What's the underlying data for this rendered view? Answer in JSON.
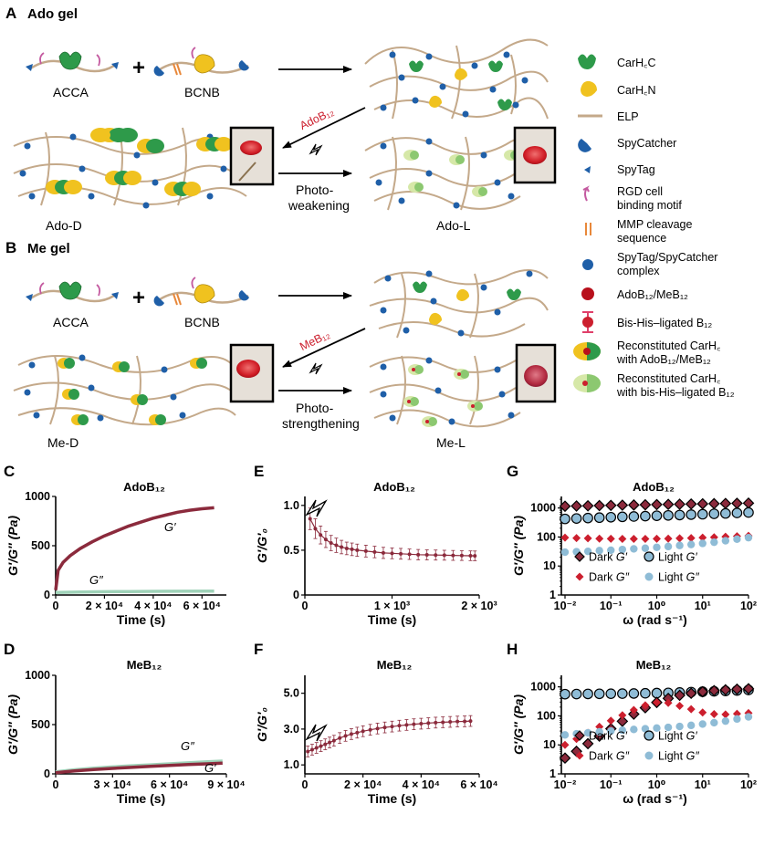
{
  "panel_labels": {
    "A": "A",
    "B": "B",
    "C": "C",
    "D": "D",
    "E": "E",
    "F": "F",
    "G": "G",
    "H": "H"
  },
  "schematic": {
    "a_title": "Ado gel",
    "b_title": "Me gel",
    "acca": "ACCA",
    "bcnb": "BCNB",
    "plus": "+",
    "ado_reagent": "AdoB₁₂",
    "me_reagent": "MeB₁₂",
    "photo_weakening": [
      "Photo-",
      "weakening"
    ],
    "photo_strengthening": [
      "Photo-",
      "strengthening"
    ],
    "ado_d": "Ado-D",
    "ado_l": "Ado-L",
    "me_d": "Me-D",
    "me_l": "Me-L"
  },
  "legend": {
    "carhcc": "CarH꜀C",
    "carhcn": "CarH꜀N",
    "elp": "ELP",
    "spycatcher": "SpyCatcher",
    "spytag": "SpyTag",
    "rgd": [
      "RGD cell",
      "binding motif"
    ],
    "mmp": [
      "MMP cleavage",
      "sequence"
    ],
    "complex": [
      "SpyTag/SpyCatcher",
      "complex"
    ],
    "adob12": "AdoB₁₂/MeB₁₂",
    "bishis": "Bis-His–ligated B₁₂",
    "recon_ado": [
      "Reconstituted CarH꜀",
      "with AdoB₁₂/MeB₁₂"
    ],
    "recon_bis": [
      "Reconstituted CarH꜀",
      "with bis-His–ligated B₁₂"
    ]
  },
  "colors": {
    "dark": "#8b2a3c",
    "light_green": "#9fd2b8",
    "red": "#cc1f2e",
    "light_blue": "#8fbcd6",
    "elp": "#c4a98a",
    "green": "#2e9a4a",
    "yellow": "#f0c21f",
    "blue": "#1f5fa8",
    "pink": "#c45aa0",
    "orange": "#e8883a"
  },
  "chart_data": [
    {
      "panel": "C",
      "type": "line",
      "title": "AdoB₁₂",
      "xlabel": "Time (s)",
      "ylabel": "G′/G″ (Pa)",
      "xlim": [
        0,
        70000
      ],
      "ylim": [
        0,
        1000
      ],
      "xticks": [
        "0",
        "2 × 10⁴",
        "4 × 10⁴",
        "6 × 10⁴"
      ],
      "yticks": [
        "0",
        "500",
        "1000"
      ],
      "series": [
        {
          "name": "G′",
          "x": [
            0,
            1000,
            3000,
            6000,
            10000,
            15000,
            20000,
            25000,
            30000,
            35000,
            40000,
            45000,
            50000,
            55000,
            60000,
            65000
          ],
          "values": [
            50,
            250,
            330,
            400,
            470,
            540,
            600,
            650,
            700,
            740,
            780,
            810,
            840,
            860,
            875,
            885
          ]
        },
        {
          "name": "G″",
          "x": [
            0,
            10000,
            20000,
            30000,
            40000,
            50000,
            65000
          ],
          "values": [
            25,
            30,
            33,
            35,
            37,
            38,
            40
          ]
        }
      ]
    },
    {
      "panel": "D",
      "type": "line",
      "title": "MeB₁₂",
      "xlabel": "Time (s)",
      "ylabel": "G′/G″ (Pa)",
      "xlim": [
        0,
        90000
      ],
      "ylim": [
        0,
        1000
      ],
      "xticks": [
        "0",
        "3 × 10⁴",
        "6 × 10⁴",
        "9 × 10⁴"
      ],
      "yticks": [
        "0",
        "500",
        "1000"
      ],
      "series": [
        {
          "name": "G″",
          "x": [
            0,
            10000,
            20000,
            30000,
            40000,
            50000,
            60000,
            70000,
            80000,
            88000
          ],
          "values": [
            20,
            42,
            58,
            70,
            82,
            92,
            102,
            112,
            122,
            130
          ]
        },
        {
          "name": "G′",
          "x": [
            0,
            10000,
            20000,
            30000,
            40000,
            50000,
            60000,
            70000,
            80000,
            88000
          ],
          "values": [
            12,
            30,
            44,
            56,
            66,
            76,
            86,
            94,
            102,
            108
          ]
        }
      ]
    },
    {
      "panel": "E",
      "type": "line",
      "title": "AdoB₁₂",
      "xlabel": "Time (s)",
      "ylabel": "G′/G′₀",
      "xlim": [
        0,
        2000
      ],
      "ylim": [
        0,
        1.1
      ],
      "xticks": [
        "0",
        "1 × 10³",
        "2 × 10³"
      ],
      "yticks": [
        "0",
        "0.5",
        "1.0"
      ],
      "series": [
        {
          "name": "G′/G′₀",
          "x": [
            60,
            120,
            180,
            240,
            300,
            360,
            420,
            480,
            540,
            600,
            700,
            800,
            900,
            1000,
            1100,
            1200,
            1300,
            1400,
            1500,
            1600,
            1700,
            1800,
            1900,
            1950
          ],
          "values": [
            0.85,
            0.74,
            0.67,
            0.62,
            0.58,
            0.555,
            0.535,
            0.52,
            0.51,
            0.5,
            0.49,
            0.48,
            0.47,
            0.465,
            0.46,
            0.455,
            0.45,
            0.448,
            0.446,
            0.444,
            0.442,
            0.44,
            0.438,
            0.437
          ],
          "err": [
            0.12,
            0.11,
            0.1,
            0.09,
            0.085,
            0.08,
            0.075,
            0.07,
            0.07,
            0.068,
            0.066,
            0.064,
            0.062,
            0.06,
            0.06,
            0.058,
            0.058,
            0.056,
            0.056,
            0.055,
            0.055,
            0.054,
            0.054,
            0.054
          ]
        }
      ]
    },
    {
      "panel": "F",
      "type": "line",
      "title": "MeB₁₂",
      "xlabel": "Time (s)",
      "ylabel": "G′/G′₀",
      "xlim": [
        0,
        60000
      ],
      "ylim": [
        0.5,
        6
      ],
      "xticks": [
        "0",
        "2 × 10⁴",
        "4 × 10⁴",
        "6 × 10⁴"
      ],
      "yticks": [
        "1.0",
        "3.0",
        "5.0"
      ],
      "series": [
        {
          "name": "G′/G′₀",
          "x": [
            1000,
            2500,
            4000,
            5500,
            7000,
            8500,
            10000,
            12000,
            14000,
            16000,
            18000,
            20000,
            22500,
            25000,
            27500,
            30000,
            32500,
            35000,
            37500,
            40000,
            42500,
            45000,
            47500,
            50000,
            52500,
            55000,
            57000
          ],
          "values": [
            1.75,
            1.85,
            1.95,
            2.05,
            2.15,
            2.25,
            2.35,
            2.5,
            2.62,
            2.72,
            2.8,
            2.88,
            2.96,
            3.03,
            3.09,
            3.14,
            3.19,
            3.23,
            3.27,
            3.3,
            3.33,
            3.36,
            3.38,
            3.4,
            3.42,
            3.43,
            3.45
          ],
          "err": [
            0.3,
            0.3,
            0.3,
            0.3,
            0.3,
            0.3,
            0.3,
            0.3,
            0.3,
            0.3,
            0.3,
            0.3,
            0.3,
            0.3,
            0.3,
            0.3,
            0.3,
            0.3,
            0.3,
            0.3,
            0.3,
            0.3,
            0.3,
            0.3,
            0.3,
            0.3,
            0.3
          ]
        }
      ]
    },
    {
      "panel": "G",
      "type": "scatter",
      "title": "AdoB₁₂",
      "xlabel": "ω (rad s⁻¹)",
      "ylabel": "G′/G″ (Pa)",
      "xscale": "log",
      "yscale": "log",
      "xlim": [
        0.01,
        100
      ],
      "ylim": [
        1,
        2500
      ],
      "xticks": [
        "10⁻²",
        "10⁻¹",
        "10⁰",
        "10¹",
        "10²"
      ],
      "yticks": [
        "1",
        "10",
        "100",
        "1000"
      ],
      "series": [
        {
          "name": "Dark G′",
          "marker": "diamond-outlined",
          "x": [
            0.01,
            0.0178,
            0.0316,
            0.0562,
            0.1,
            0.178,
            0.316,
            0.562,
            1,
            1.78,
            3.16,
            5.62,
            10,
            17.8,
            31.6,
            56.2,
            100
          ],
          "values": [
            1150,
            1170,
            1190,
            1210,
            1230,
            1250,
            1270,
            1290,
            1310,
            1330,
            1350,
            1370,
            1390,
            1410,
            1430,
            1450,
            1470
          ]
        },
        {
          "name": "Light G′",
          "marker": "circle-outlined",
          "x": [
            0.01,
            0.0178,
            0.0316,
            0.0562,
            0.1,
            0.178,
            0.316,
            0.562,
            1,
            1.78,
            3.16,
            5.62,
            10,
            17.8,
            31.6,
            56.2,
            100
          ],
          "values": [
            420,
            435,
            450,
            465,
            480,
            495,
            510,
            525,
            540,
            555,
            570,
            590,
            610,
            630,
            650,
            675,
            700
          ]
        },
        {
          "name": "Dark G″",
          "marker": "diamond",
          "x": [
            0.01,
            0.0178,
            0.0316,
            0.0562,
            0.1,
            0.178,
            0.316,
            0.562,
            1,
            1.78,
            3.16,
            5.62,
            10,
            17.8,
            31.6,
            56.2,
            100
          ],
          "values": [
            95,
            92,
            90,
            88,
            87,
            86,
            86,
            86,
            87,
            88,
            90,
            92,
            95,
            98,
            102,
            106,
            110
          ]
        },
        {
          "name": "Light G″",
          "marker": "circle",
          "x": [
            0.01,
            0.0178,
            0.0316,
            0.0562,
            0.1,
            0.178,
            0.316,
            0.562,
            1,
            1.78,
            3.16,
            5.62,
            10,
            17.8,
            31.6,
            56.2,
            100
          ],
          "values": [
            30,
            31,
            32,
            34,
            35,
            37,
            39,
            41,
            44,
            47,
            51,
            55,
            60,
            66,
            74,
            84,
            95
          ]
        }
      ],
      "legend_labels": [
        [
          "Dark",
          "G′"
        ],
        [
          "Light",
          "G′"
        ],
        [
          "Dark",
          "G″"
        ],
        [
          "Light",
          "G″"
        ]
      ]
    },
    {
      "panel": "H",
      "type": "scatter",
      "title": "MeB₁₂",
      "xlabel": "ω (rad s⁻¹)",
      "ylabel": "G′/G″ (Pa)",
      "xscale": "log",
      "yscale": "log",
      "xlim": [
        0.01,
        100
      ],
      "ylim": [
        1,
        2500
      ],
      "xticks": [
        "10⁻²",
        "10⁻¹",
        "10⁰",
        "10¹",
        "10²"
      ],
      "yticks": [
        "1",
        "10",
        "100",
        "1000"
      ],
      "series": [
        {
          "name": "Light G′",
          "marker": "circle-outlined",
          "x": [
            0.01,
            0.0178,
            0.0316,
            0.0562,
            0.1,
            0.178,
            0.316,
            0.562,
            1,
            1.78,
            3.16,
            5.62,
            10,
            17.8,
            31.6,
            56.2,
            100
          ],
          "values": [
            560,
            565,
            570,
            575,
            580,
            585,
            590,
            600,
            610,
            620,
            640,
            660,
            680,
            700,
            720,
            750,
            780
          ]
        },
        {
          "name": "Dark G′",
          "marker": "diamond-outlined",
          "x": [
            0.01,
            0.0178,
            0.0316,
            0.0562,
            0.1,
            0.178,
            0.316,
            0.562,
            1,
            1.78,
            3.16,
            5.62,
            10,
            17.8,
            31.6,
            56.2,
            100
          ],
          "values": [
            3.5,
            6,
            11,
            20,
            36,
            65,
            115,
            190,
            290,
            400,
            510,
            600,
            680,
            740,
            790,
            830,
            860
          ]
        },
        {
          "name": "Dark G″",
          "marker": "diamond",
          "x": [
            0.01,
            0.0178,
            0.0316,
            0.0562,
            0.1,
            0.178,
            0.316,
            0.562,
            1,
            1.78,
            3.16,
            5.62,
            10,
            17.8,
            31.6,
            56.2,
            100
          ],
          "values": [
            10,
            16,
            26,
            42,
            68,
            105,
            160,
            230,
            290,
            280,
            220,
            170,
            130,
            115,
            112,
            118,
            125
          ]
        },
        {
          "name": "Light G″",
          "marker": "circle",
          "x": [
            0.01,
            0.0178,
            0.0316,
            0.0562,
            0.1,
            0.178,
            0.316,
            0.562,
            1,
            1.78,
            3.16,
            5.62,
            10,
            17.8,
            31.6,
            56.2,
            100
          ],
          "values": [
            22,
            24,
            26,
            28,
            30,
            32,
            34,
            36,
            38,
            40,
            43,
            47,
            52,
            58,
            66,
            78,
            92
          ]
        }
      ],
      "legend_labels": [
        [
          "Dark",
          "G′"
        ],
        [
          "Light",
          "G′"
        ],
        [
          "Dark",
          "G″"
        ],
        [
          "Light",
          "G″"
        ]
      ]
    }
  ]
}
